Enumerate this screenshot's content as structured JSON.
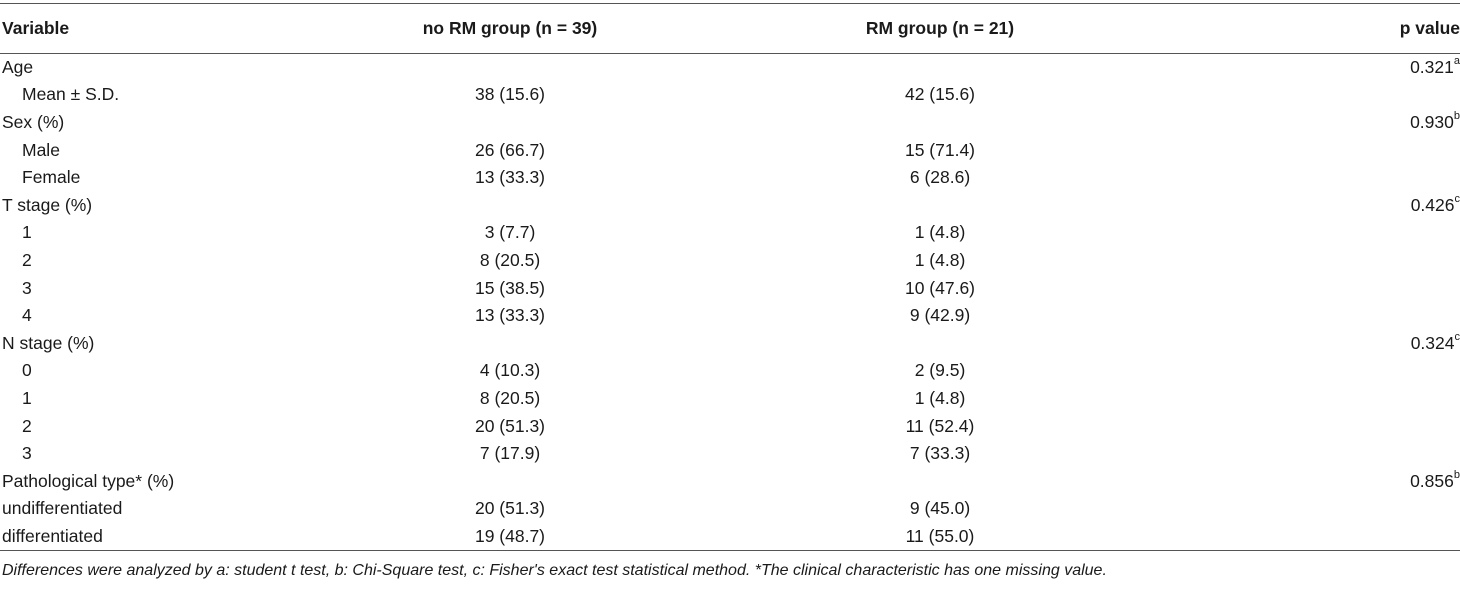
{
  "header": {
    "variable": "Variable",
    "no_rm": "no RM group (n = 39)",
    "rm": "RM group (n = 21)",
    "p": "p value"
  },
  "rows": [
    {
      "label": "Age",
      "indent": false,
      "no_rm": "",
      "rm": "",
      "p": "0.321",
      "sup": "a"
    },
    {
      "label": "Mean ± S.D.",
      "indent": true,
      "no_rm": "38 (15.6)",
      "rm": "42 (15.6)",
      "p": "",
      "sup": ""
    },
    {
      "label": "Sex (%)",
      "indent": false,
      "no_rm": "",
      "rm": "",
      "p": "0.930",
      "sup": "b"
    },
    {
      "label": "Male",
      "indent": true,
      "no_rm": "26 (66.7)",
      "rm": "15 (71.4)",
      "p": "",
      "sup": ""
    },
    {
      "label": "Female",
      "indent": true,
      "no_rm": "13 (33.3)",
      "rm": "6 (28.6)",
      "p": "",
      "sup": ""
    },
    {
      "label": "T stage (%)",
      "indent": false,
      "no_rm": "",
      "rm": "",
      "p": "0.426",
      "sup": "c"
    },
    {
      "label": "1",
      "indent": true,
      "no_rm": "3 (7.7)",
      "rm": "1 (4.8)",
      "p": "",
      "sup": ""
    },
    {
      "label": "2",
      "indent": true,
      "no_rm": "8 (20.5)",
      "rm": "1 (4.8)",
      "p": "",
      "sup": ""
    },
    {
      "label": "3",
      "indent": true,
      "no_rm": "15 (38.5)",
      "rm": "10 (47.6)",
      "p": "",
      "sup": ""
    },
    {
      "label": "4",
      "indent": true,
      "no_rm": "13 (33.3)",
      "rm": "9 (42.9)",
      "p": "",
      "sup": ""
    },
    {
      "label": "N stage (%)",
      "indent": false,
      "no_rm": "",
      "rm": "",
      "p": "0.324",
      "sup": "c"
    },
    {
      "label": "0",
      "indent": true,
      "no_rm": "4 (10.3)",
      "rm": "2 (9.5)",
      "p": "",
      "sup": ""
    },
    {
      "label": "1",
      "indent": true,
      "no_rm": "8 (20.5)",
      "rm": "1 (4.8)",
      "p": "",
      "sup": ""
    },
    {
      "label": "2",
      "indent": true,
      "no_rm": "20 (51.3)",
      "rm": "11 (52.4)",
      "p": "",
      "sup": ""
    },
    {
      "label": "3",
      "indent": true,
      "no_rm": "7 (17.9)",
      "rm": "7 (33.3)",
      "p": "",
      "sup": ""
    },
    {
      "label": "Pathological type* (%)",
      "indent": false,
      "no_rm": "",
      "rm": "",
      "p": "0.856",
      "sup": "b"
    },
    {
      "label": "undifferentiated",
      "indent": false,
      "no_rm": "20 (51.3)",
      "rm": "9 (45.0)",
      "p": "",
      "sup": ""
    },
    {
      "label": "differentiated",
      "indent": false,
      "no_rm": "19 (48.7)",
      "rm": "11 (55.0)",
      "p": "",
      "sup": ""
    }
  ],
  "footnote": "Differences were analyzed by a: student t test, b: Chi-Square test, c: Fisher's exact test statistical method. *The clinical characteristic has one missing value."
}
